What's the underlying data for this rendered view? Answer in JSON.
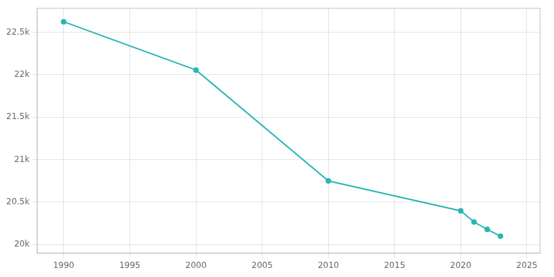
{
  "chart_data": {
    "type": "line",
    "x": [
      1990,
      2000,
      2010,
      2020,
      2021,
      2022,
      2023
    ],
    "values": [
      22622,
      22054,
      20750,
      20398,
      20267,
      20180,
      20100
    ],
    "color": "#2ab5b5",
    "marker": "circle",
    "xlim": [
      1988,
      2026
    ],
    "xticks": [
      1990,
      1995,
      2000,
      2005,
      2010,
      2015,
      2020,
      2025
    ],
    "ylim": [
      19900,
      22780
    ],
    "yticks": [
      {
        "value": 20000,
        "label": "20k"
      },
      {
        "value": 20500,
        "label": "20.5k"
      },
      {
        "value": 21000,
        "label": "21k"
      },
      {
        "value": 21500,
        "label": "21.5k"
      },
      {
        "value": 22000,
        "label": "22k"
      },
      {
        "value": 22500,
        "label": "22.5k"
      }
    ],
    "grid": true
  }
}
